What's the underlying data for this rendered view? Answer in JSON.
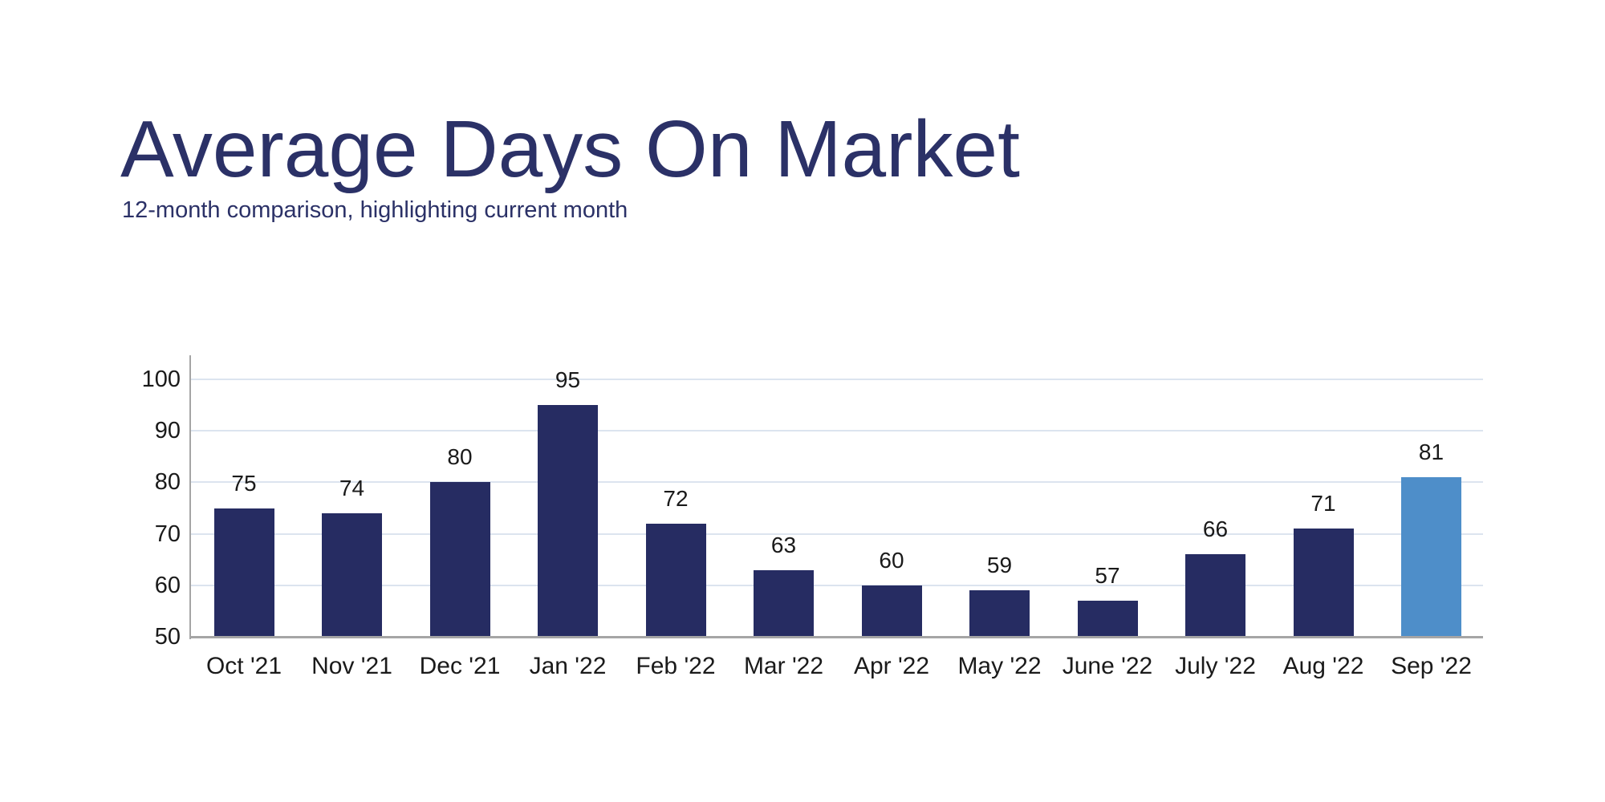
{
  "header": {
    "title": "Average Days On Market",
    "subtitle": "12-month comparison, highlighting current month"
  },
  "chart_data": {
    "type": "bar",
    "title": "Average Days On Market",
    "subtitle": "12-month comparison, highlighting current month",
    "categories": [
      "Oct '21",
      "Nov '21",
      "Dec '21",
      "Jan '22",
      "Feb '22",
      "Mar '22",
      "Apr '22",
      "May '22",
      "June '22",
      "July '22",
      "Aug '22",
      "Sep '22"
    ],
    "values": [
      75,
      74,
      80,
      95,
      72,
      63,
      60,
      59,
      57,
      66,
      71,
      81
    ],
    "highlighted_index": 11,
    "highlighted_category": "Sep '22",
    "xlabel": "",
    "ylabel": "",
    "yticks": [
      50,
      60,
      70,
      80,
      90,
      100
    ],
    "ylim": [
      50,
      105
    ],
    "grid": true,
    "legend": false,
    "value_labels_shown": true,
    "colors": {
      "bar": "#262C62",
      "highlighted_bar": "#4E8EC9",
      "title_text": "#2B3167",
      "gridline": "#DCE4EF",
      "axis": "#A5A5A5",
      "tick_text": "#1A1A1A",
      "background": "#FFFFFF"
    }
  }
}
